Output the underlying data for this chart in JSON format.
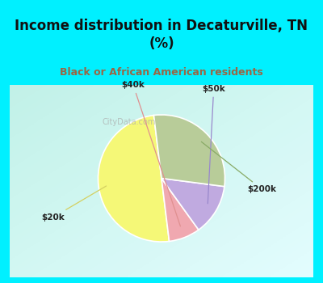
{
  "title": "Income distribution in Decaturville, TN\n(%)",
  "subtitle": "Black or African American residents",
  "labels": [
    "$20k",
    "$40k",
    "$50k",
    "$200k"
  ],
  "values": [
    50,
    8,
    13,
    29
  ],
  "colors": [
    "#f5f877",
    "#f0a8b0",
    "#c0aae0",
    "#b8cc99"
  ],
  "background_cyan": "#00f0ff",
  "background_chart": "#ffffff",
  "title_color": "#111111",
  "subtitle_color": "#996644",
  "watermark": "CityData.com",
  "start_angle": 97,
  "title_fontsize": 12,
  "subtitle_fontsize": 9
}
